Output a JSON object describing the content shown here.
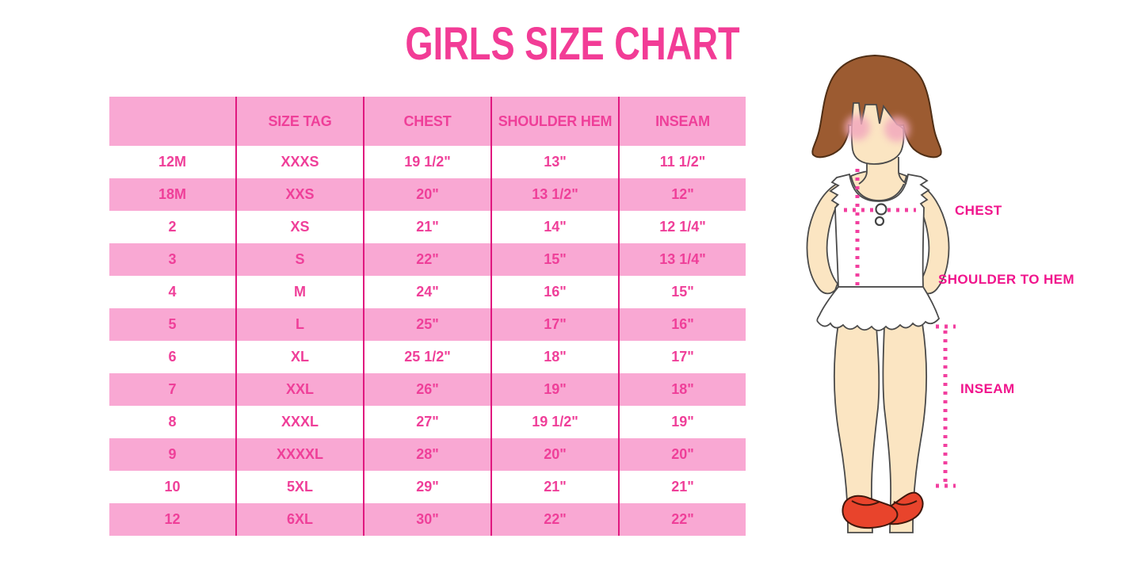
{
  "title_note": "Girls clothing size chart infographic",
  "chart_data": {
    "type": "table",
    "title": "GIRLS SIZE CHART",
    "columns": [
      "",
      "SIZE TAG",
      "CHEST",
      "SHOULDER HEM",
      "INSEAM"
    ],
    "rows": [
      [
        "12M",
        "XXXS",
        "19 1/2\"",
        "13\"",
        "11 1/2\""
      ],
      [
        "18M",
        "XXS",
        "20\"",
        "13 1/2\"",
        "12\""
      ],
      [
        "2",
        "XS",
        "21\"",
        "14\"",
        "12 1/4\""
      ],
      [
        "3",
        "S",
        "22\"",
        "15\"",
        "13 1/4\""
      ],
      [
        "4",
        "M",
        "24\"",
        "16\"",
        "15\""
      ],
      [
        "5",
        "L",
        "25\"",
        "17\"",
        "16\""
      ],
      [
        "6",
        "XL",
        "25 1/2\"",
        "18\"",
        "17\""
      ],
      [
        "7",
        "XXL",
        "26\"",
        "19\"",
        "18\""
      ],
      [
        "8",
        "XXXL",
        "27\"",
        "19 1/2\"",
        "19\""
      ],
      [
        "9",
        "XXXXL",
        "28\"",
        "20\"",
        "20\""
      ],
      [
        "10",
        "5XL",
        "29\"",
        "21\"",
        "21\""
      ],
      [
        "12",
        "6XL",
        "30\"",
        "22\"",
        "22\""
      ]
    ],
    "layout": {
      "striped": true,
      "header_background": "#F9A8D3",
      "grid": "vertical-only"
    }
  },
  "figure": {
    "labels": {
      "chest": "CHEST",
      "shoulder_to_hem": "SHOULDER TO HEM",
      "inseam": "INSEAM"
    }
  },
  "colors": {
    "title_pink": "#F23C96",
    "row_pink": "#F9A8D3",
    "divider_magenta": "#E0187F",
    "table_text_pink": "#EF3F99",
    "label_magenta": "#F0148C",
    "dotted_line_pink": "#F23F9F",
    "hair_brown": "#9C5B31",
    "skin": "#FBE5C2",
    "shoe_red": "#E8442C"
  }
}
